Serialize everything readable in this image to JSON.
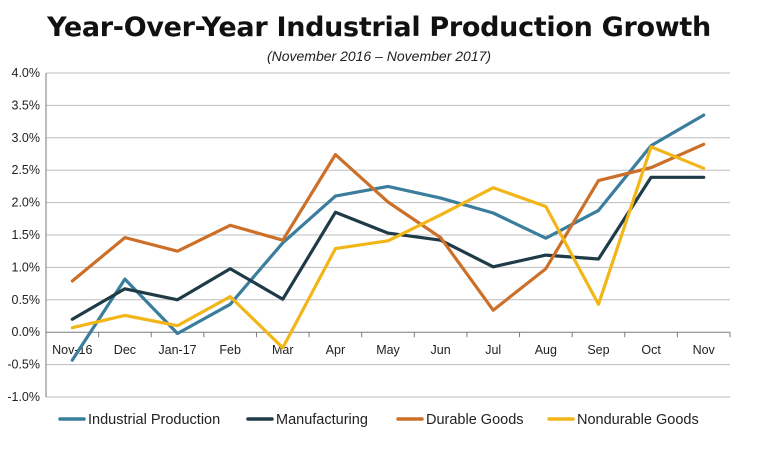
{
  "chart_data": {
    "type": "line",
    "title": "Year-Over-Year Industrial Production Growth",
    "subtitle": "(November 2016 – November 2017)",
    "categories": [
      "Nov-16",
      "Dec",
      "Jan-17",
      "Feb",
      "Mar",
      "Apr",
      "May",
      "Jun",
      "Jul",
      "Aug",
      "Sep",
      "Oct",
      "Nov"
    ],
    "ylim": [
      -1.0,
      4.0
    ],
    "yticks": [
      -1.0,
      -0.5,
      0.0,
      0.5,
      1.0,
      1.5,
      2.0,
      2.5,
      3.0,
      3.5,
      4.0
    ],
    "ytick_labels": [
      "-1.0%",
      "-0.5%",
      "0.0%",
      "0.5%",
      "1.0%",
      "1.5%",
      "2.0%",
      "2.5%",
      "3.0%",
      "3.5%",
      "4.0%"
    ],
    "grid": true,
    "legend_position": "bottom",
    "series": [
      {
        "name": "Industrial Production",
        "color": "#3a7d9c",
        "values": [
          -0.43,
          0.82,
          -0.02,
          0.43,
          1.38,
          2.1,
          2.25,
          2.07,
          1.84,
          1.45,
          1.88,
          2.88,
          3.35
        ]
      },
      {
        "name": "Manufacturing",
        "color": "#1f3b47",
        "values": [
          0.2,
          0.67,
          0.5,
          0.98,
          0.51,
          1.85,
          1.53,
          1.42,
          1.01,
          1.19,
          1.13,
          2.39,
          2.39
        ]
      },
      {
        "name": "Durable Goods",
        "color": "#cc7029",
        "values": [
          0.79,
          1.46,
          1.25,
          1.65,
          1.42,
          2.74,
          2.01,
          1.46,
          0.34,
          0.98,
          2.34,
          2.54,
          2.9
        ]
      },
      {
        "name": "Nondurable Goods",
        "color": "#f2b619",
        "values": [
          0.07,
          0.26,
          0.1,
          0.55,
          -0.24,
          1.29,
          1.41,
          1.81,
          2.23,
          1.94,
          0.43,
          2.86,
          2.53
        ]
      }
    ]
  }
}
